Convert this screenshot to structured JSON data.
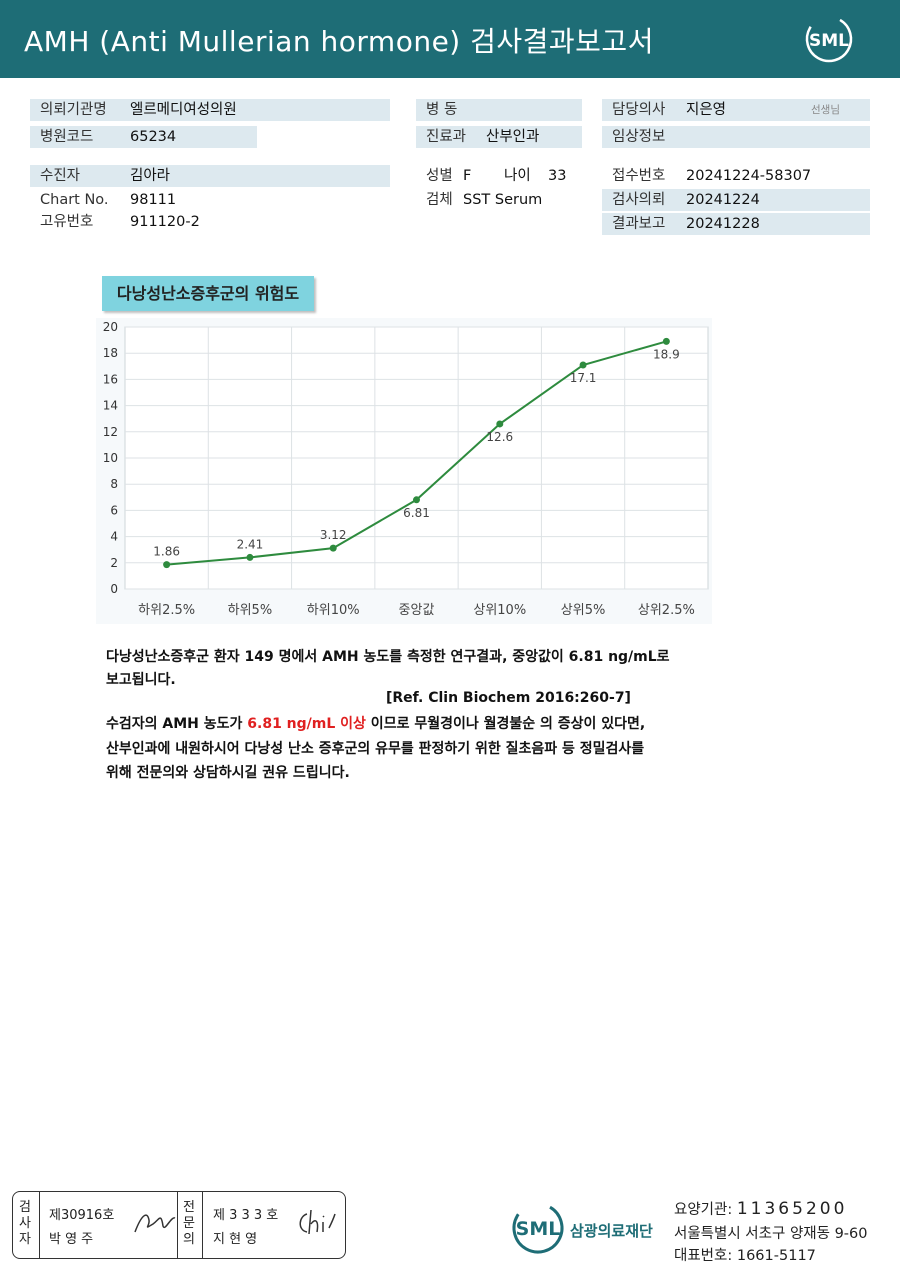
{
  "header": {
    "title": "AMH (Anti Mullerian hormone) 검사결과보고서",
    "logo_text": "SML"
  },
  "info": {
    "requesting_org_label": "의뢰기관명",
    "requesting_org": "엘르메디여성의원",
    "hospital_code_label": "병원코드",
    "hospital_code": "65234",
    "ward_label": "병  동",
    "ward": "",
    "department_label": "진료과",
    "department": "산부인과",
    "doctor_label": "담당의사",
    "doctor": "지은영",
    "doctor_suffix": "선생님",
    "clinical_info_label": "임상정보",
    "clinical_info": "",
    "patient_label": "수진자",
    "patient": "김아라",
    "chart_no_label": "Chart No.",
    "chart_no": "98111",
    "unique_no_label": "고유번호",
    "unique_no": "911120-2",
    "sex_label": "성별",
    "sex": "F",
    "age_label": "나이",
    "age": "33",
    "specimen_label": "검체",
    "specimen": "SST Serum",
    "receipt_no_label": "접수번호",
    "receipt_no": "20241224-58307",
    "request_date_label": "검사의뢰",
    "request_date": "20241224",
    "report_date_label": "결과보고",
    "report_date": "20241228"
  },
  "risk_title": "다낭성난소증후군의 위험도",
  "chart_data": {
    "type": "line",
    "categories": [
      "하위2.5%",
      "하위5%",
      "하위10%",
      "중앙값",
      "상위10%",
      "상위5%",
      "상위2.5%"
    ],
    "series": [
      {
        "values": [
          1.86,
          2.41,
          3.12,
          6.81,
          12.6,
          17.1,
          18.9
        ]
      }
    ],
    "value_labels": [
      "1.86",
      "2.41",
      "3.12",
      "6.81",
      "12.6",
      "17.1",
      "18.9"
    ],
    "ylim": [
      0,
      20
    ],
    "yticks": [
      0,
      2,
      4,
      6,
      8,
      10,
      12,
      14,
      16,
      18,
      20
    ],
    "grid": true,
    "line_color": "#2e8b3e",
    "title": "",
    "xlabel": "",
    "ylabel": ""
  },
  "description": {
    "line1": "다낭성난소증후군 환자 149 명에서 AMH 농도를 측정한 연구결과, 중앙값이 6.81 ng/mL로",
    "line2": "보고됩니다.",
    "reference": "[Ref. Clin Biochem 2016:260-7]",
    "line3_pre": "수검자의 AMH 농도가 ",
    "line3_red": "6.81 ng/mL 이상",
    "line3_post": " 이므로 무월경이나 월경불순 의 증상이 있다면,",
    "line4": "산부인과에 내원하시어 다낭성 난소 증후군의 유무를 판정하기 위한 질초음파 등 정밀검사를",
    "line5": "위해 전문의와 상담하시길 권유 드립니다.",
    "red_color": "#e02020"
  },
  "footer": {
    "inspector_label": [
      "검",
      "사",
      "자"
    ],
    "inspector_no": "제30916호",
    "inspector_name": "박  영  주",
    "specialist_label": [
      "전",
      "문",
      "의"
    ],
    "specialist_no": "제 3 3 3 호",
    "specialist_name": "지  현  영",
    "org_name": "삼광의료재단",
    "logo_text": "SML",
    "care_code_label": "요양기관:",
    "care_code": "11365200",
    "address": "서울특별시 서초구 양재동 9-60",
    "phone_label": "대표번호:",
    "phone": "1661-5117",
    "brand_color": "#1e6d76"
  }
}
